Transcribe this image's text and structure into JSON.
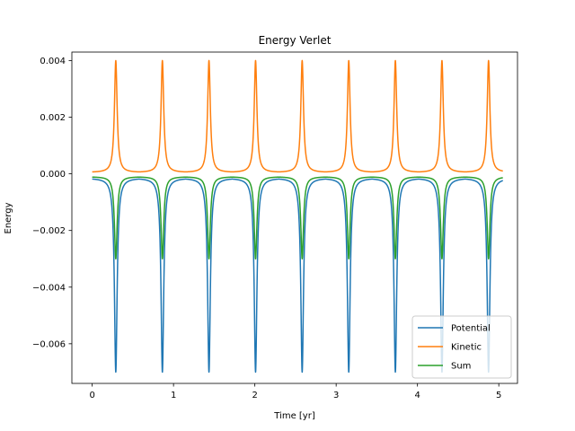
{
  "chart_data": {
    "type": "line",
    "title": "Energy Verlet",
    "xlabel": "Time [yr]",
    "ylabel": "Energy",
    "xlim": [
      -0.25,
      5.23
    ],
    "ylim": [
      -0.0074,
      0.0043
    ],
    "x_ticks": [
      0,
      1,
      2,
      3,
      4,
      5
    ],
    "x_tick_labels": [
      "0",
      "1",
      "2",
      "3",
      "4",
      "5"
    ],
    "y_ticks": [
      -0.006,
      -0.004,
      -0.002,
      0.0,
      0.002,
      0.004
    ],
    "y_tick_labels": [
      "−0.006",
      "−0.004",
      "−0.002",
      "0.000",
      "0.002",
      "0.004"
    ],
    "grid": false,
    "legend_position": "lower-right",
    "x_range": [
      0,
      5.05
    ],
    "period": 0.573,
    "peak_times": [
      0.29,
      0.863,
      1.436,
      2.009,
      2.582,
      3.155,
      3.728,
      4.301,
      4.874
    ],
    "series": [
      {
        "name": "Potential",
        "color": "#1f77b4",
        "baseline": -0.00015,
        "peak": -0.007
      },
      {
        "name": "Kinetic",
        "color": "#ff7f0e",
        "baseline": 5e-05,
        "peak": 0.004
      },
      {
        "name": "Sum",
        "color": "#2ca02c",
        "baseline": -0.0001,
        "peak": -0.003
      }
    ]
  }
}
